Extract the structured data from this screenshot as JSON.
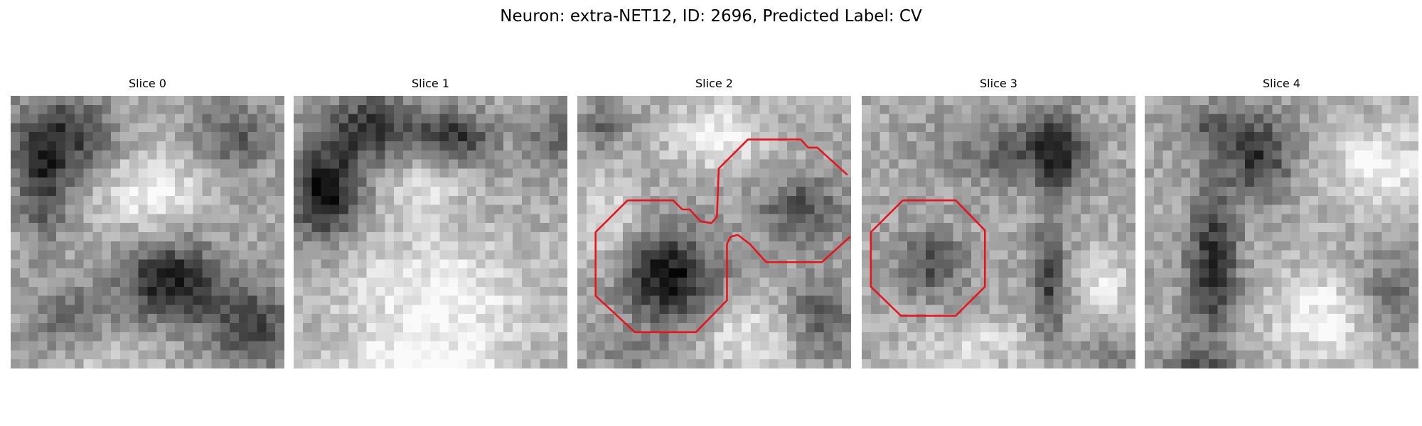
{
  "figure": {
    "title": "Neuron: extra-NET12, ID: 2696, Predicted Label: CV"
  },
  "panels": [
    {
      "title": "Slice 0",
      "seed": 11,
      "contours": 0
    },
    {
      "title": "Slice 1",
      "seed": 23,
      "contours": 0
    },
    {
      "title": "Slice 2",
      "seed": 37,
      "contours": 2
    },
    {
      "title": "Slice 3",
      "seed": 41,
      "contours": 1
    },
    {
      "title": "Slice 4",
      "seed": 53,
      "contours": 0
    }
  ],
  "colors": {
    "contour": "#e8141c",
    "background": "#ffffff"
  }
}
